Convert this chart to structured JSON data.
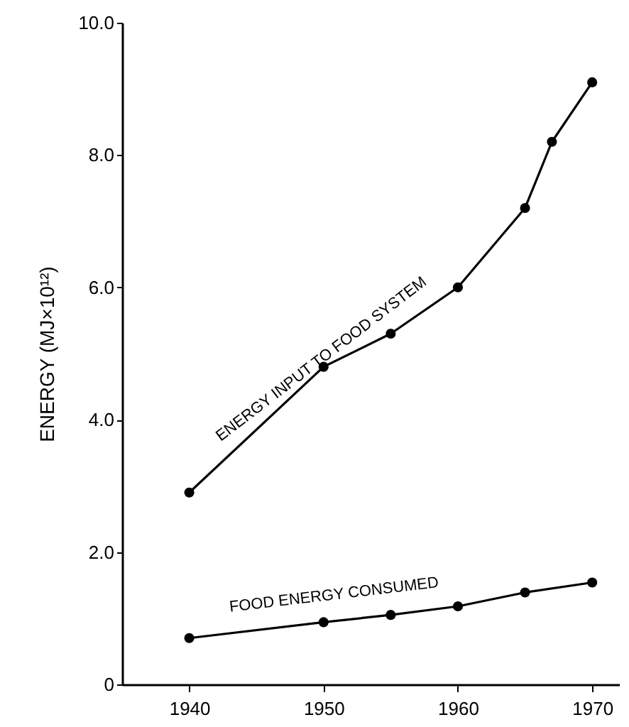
{
  "chart_data": {
    "type": "line",
    "ylabel": "ENERGY (MJ×10¹²)",
    "xlim": [
      1935,
      1972
    ],
    "xticks": [
      1940,
      1950,
      1960,
      1970
    ],
    "ylim": [
      0,
      10
    ],
    "yticks": [
      {
        "value": 0,
        "label": "0"
      },
      {
        "value": 2,
        "label": "2.0"
      },
      {
        "value": 4,
        "label": "4.0"
      },
      {
        "value": 6,
        "label": "6.0"
      },
      {
        "value": 8,
        "label": "8.0"
      },
      {
        "value": 10,
        "label": "10.0"
      }
    ],
    "grid": false,
    "marker": "circle",
    "line_style": "solid",
    "series": [
      {
        "name": "ENERGY INPUT TO FOOD SYSTEM",
        "color": "#000000",
        "x": [
          1940,
          1950,
          1955,
          1960,
          1965,
          1967,
          1970
        ],
        "values": [
          2.9,
          4.8,
          5.3,
          6.0,
          7.2,
          8.2,
          9.1
        ]
      },
      {
        "name": "FOOD ENERGY CONSUMED",
        "color": "#000000",
        "x": [
          1940,
          1950,
          1955,
          1960,
          1965,
          1970
        ],
        "values": [
          0.7,
          0.94,
          1.05,
          1.18,
          1.39,
          1.54
        ]
      }
    ]
  }
}
